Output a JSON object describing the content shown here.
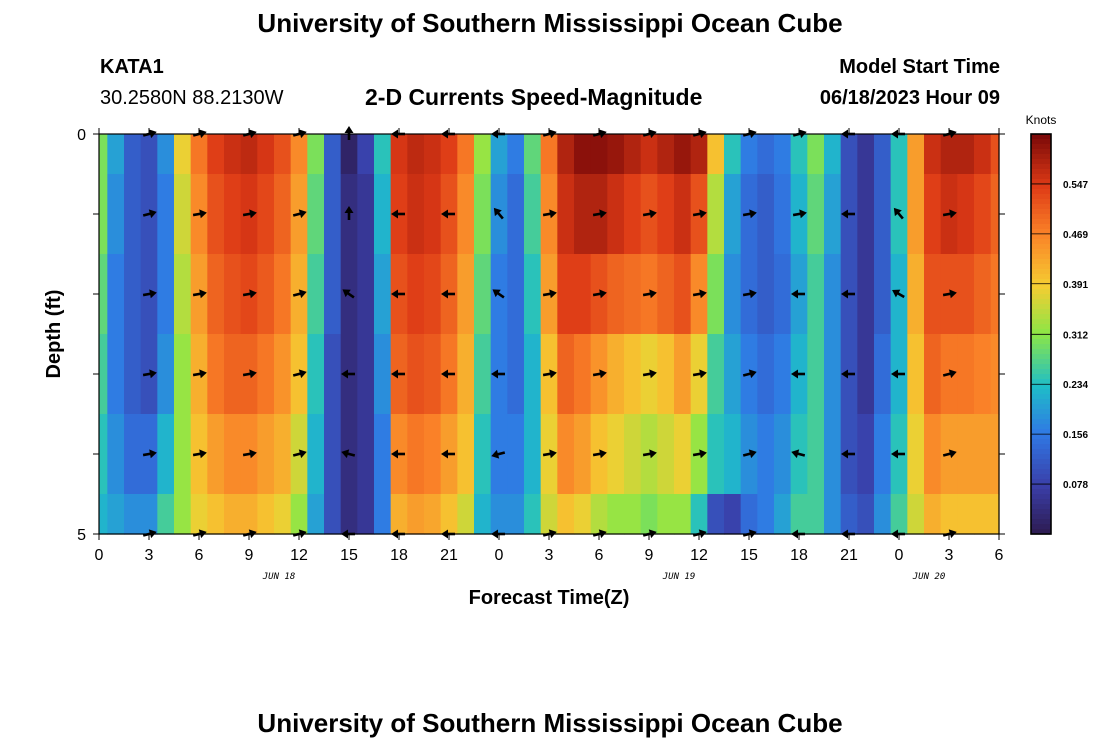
{
  "header": {
    "title": "University of Southern Mississippi Ocean Cube",
    "station_id": "KATA1",
    "station_coords": "30.2580N  88.2130W",
    "subtitle": "2-D Currents Speed-Magnitude",
    "model_start_label": "Model Start Time",
    "model_start_value": "06/18/2023 Hour 09"
  },
  "footer": {
    "title": "University of Southern Mississippi Ocean Cube"
  },
  "chart_data": {
    "type": "heatmap",
    "title": "2-D Currents Speed-Magnitude",
    "xlabel": "Forecast Time(Z)",
    "ylabel": "Depth (ft)",
    "x_tick_labels": [
      "0",
      "3",
      "6",
      "9",
      "12",
      "15",
      "18",
      "21",
      "0",
      "3",
      "6",
      "9",
      "12",
      "15",
      "18",
      "21",
      "0",
      "3",
      "6"
    ],
    "date_labels": [
      {
        "text": "JUN 18",
        "at_tick": 3.6
      },
      {
        "text": "JUN 19",
        "at_tick": 11.6
      },
      {
        "text": "JUN 20",
        "at_tick": 16.6
      }
    ],
    "y_tick_labels": [
      "0",
      "5"
    ],
    "ylim": [
      0,
      5
    ],
    "colorbar": {
      "unit": "Knots",
      "ticks": [
        "0.547",
        "0.469",
        "0.391",
        "0.312",
        "0.234",
        "0.156",
        "0.078"
      ],
      "range": [
        0,
        0.625
      ]
    },
    "time_hours": [
      0,
      1,
      2,
      3,
      4,
      5,
      6,
      7,
      8,
      9,
      10,
      11,
      12,
      13,
      14,
      15,
      16,
      17,
      18,
      19,
      20,
      21,
      22,
      23,
      24,
      25,
      26,
      27,
      28,
      29,
      30,
      31,
      32,
      33,
      34,
      35,
      36,
      37,
      38,
      39,
      40,
      41,
      42,
      43,
      44,
      45,
      46,
      47,
      48,
      49,
      50,
      51,
      52,
      53,
      54
    ],
    "depth_levels": [
      0,
      1,
      2,
      3,
      4,
      5
    ],
    "speed_knots": [
      [
        0.3,
        0.2,
        0.12,
        0.1,
        0.18,
        0.38,
        0.48,
        0.54,
        0.56,
        0.57,
        0.55,
        0.52,
        0.46,
        0.3,
        0.12,
        0.02,
        0.08,
        0.24,
        0.55,
        0.57,
        0.56,
        0.54,
        0.48,
        0.32,
        0.2,
        0.16,
        0.28,
        0.48,
        0.58,
        0.61,
        0.61,
        0.6,
        0.58,
        0.56,
        0.58,
        0.6,
        0.58,
        0.4,
        0.24,
        0.16,
        0.14,
        0.16,
        0.24,
        0.3,
        0.22,
        0.1,
        0.06,
        0.12,
        0.24,
        0.44,
        0.56,
        0.58,
        0.58,
        0.56,
        0.52
      ],
      [
        0.3,
        0.18,
        0.12,
        0.1,
        0.16,
        0.36,
        0.46,
        0.52,
        0.54,
        0.55,
        0.53,
        0.5,
        0.44,
        0.28,
        0.12,
        0.04,
        0.06,
        0.22,
        0.54,
        0.56,
        0.55,
        0.52,
        0.46,
        0.3,
        0.18,
        0.14,
        0.26,
        0.46,
        0.56,
        0.58,
        0.58,
        0.56,
        0.54,
        0.52,
        0.54,
        0.56,
        0.52,
        0.34,
        0.2,
        0.14,
        0.12,
        0.15,
        0.22,
        0.28,
        0.2,
        0.1,
        0.06,
        0.12,
        0.24,
        0.44,
        0.54,
        0.56,
        0.55,
        0.53,
        0.5
      ],
      [
        0.28,
        0.16,
        0.12,
        0.1,
        0.16,
        0.34,
        0.44,
        0.5,
        0.52,
        0.53,
        0.51,
        0.48,
        0.42,
        0.26,
        0.12,
        0.04,
        0.06,
        0.2,
        0.52,
        0.54,
        0.53,
        0.5,
        0.44,
        0.28,
        0.16,
        0.14,
        0.24,
        0.44,
        0.54,
        0.54,
        0.52,
        0.5,
        0.49,
        0.48,
        0.5,
        0.52,
        0.46,
        0.3,
        0.18,
        0.14,
        0.12,
        0.14,
        0.2,
        0.26,
        0.18,
        0.1,
        0.06,
        0.12,
        0.22,
        0.42,
        0.52,
        0.52,
        0.52,
        0.5,
        0.48
      ],
      [
        0.26,
        0.16,
        0.12,
        0.1,
        0.18,
        0.32,
        0.42,
        0.48,
        0.5,
        0.5,
        0.48,
        0.45,
        0.4,
        0.24,
        0.1,
        0.04,
        0.06,
        0.18,
        0.5,
        0.52,
        0.51,
        0.48,
        0.42,
        0.26,
        0.16,
        0.14,
        0.22,
        0.4,
        0.5,
        0.48,
        0.45,
        0.42,
        0.4,
        0.38,
        0.4,
        0.44,
        0.38,
        0.26,
        0.2,
        0.16,
        0.14,
        0.16,
        0.22,
        0.26,
        0.18,
        0.1,
        0.06,
        0.14,
        0.22,
        0.4,
        0.5,
        0.48,
        0.48,
        0.47,
        0.46
      ],
      [
        0.24,
        0.18,
        0.14,
        0.14,
        0.22,
        0.32,
        0.4,
        0.44,
        0.46,
        0.46,
        0.44,
        0.42,
        0.36,
        0.22,
        0.1,
        0.04,
        0.06,
        0.16,
        0.46,
        0.48,
        0.47,
        0.44,
        0.4,
        0.24,
        0.16,
        0.16,
        0.22,
        0.38,
        0.46,
        0.44,
        0.4,
        0.38,
        0.36,
        0.34,
        0.36,
        0.38,
        0.32,
        0.24,
        0.22,
        0.18,
        0.16,
        0.18,
        0.24,
        0.26,
        0.18,
        0.1,
        0.08,
        0.16,
        0.24,
        0.38,
        0.46,
        0.44,
        0.44,
        0.44,
        0.44
      ],
      [
        0.22,
        0.2,
        0.18,
        0.18,
        0.26,
        0.32,
        0.38,
        0.4,
        0.42,
        0.42,
        0.4,
        0.38,
        0.32,
        0.2,
        0.1,
        0.04,
        0.06,
        0.16,
        0.42,
        0.44,
        0.43,
        0.4,
        0.36,
        0.22,
        0.18,
        0.18,
        0.24,
        0.36,
        0.4,
        0.38,
        0.34,
        0.32,
        0.32,
        0.3,
        0.32,
        0.32,
        0.24,
        0.1,
        0.08,
        0.14,
        0.16,
        0.2,
        0.26,
        0.26,
        0.18,
        0.12,
        0.1,
        0.18,
        0.26,
        0.36,
        0.42,
        0.4,
        0.4,
        0.4,
        0.4
      ]
    ],
    "vectors": {
      "times": [
        3,
        6,
        9,
        12,
        15,
        18,
        21,
        24,
        27,
        30,
        33,
        36,
        39,
        42,
        45,
        48,
        51
      ],
      "depths": [
        0,
        1,
        2,
        3,
        4,
        5
      ],
      "angles_deg": [
        [
          -15,
          -15,
          -15,
          -15,
          -90,
          180,
          180,
          180,
          -15,
          -15,
          -15,
          -15,
          -15,
          -15,
          180,
          180,
          -15
        ],
        [
          -15,
          -10,
          -10,
          -15,
          -90,
          180,
          180,
          -130,
          -10,
          -10,
          -10,
          -10,
          -10,
          -10,
          180,
          -130,
          -10
        ],
        [
          -10,
          -10,
          -10,
          -15,
          -145,
          180,
          180,
          -145,
          -10,
          -10,
          -10,
          -10,
          -10,
          180,
          180,
          -150,
          -10
        ],
        [
          -10,
          -10,
          -10,
          -15,
          180,
          180,
          180,
          180,
          -10,
          -10,
          -10,
          -10,
          -15,
          180,
          180,
          180,
          -15
        ],
        [
          -10,
          -10,
          -10,
          -15,
          -165,
          180,
          180,
          165,
          -10,
          -10,
          -10,
          -10,
          -15,
          -165,
          180,
          180,
          -15
        ],
        [
          -15,
          -15,
          -15,
          -15,
          180,
          180,
          180,
          180,
          -15,
          -15,
          -15,
          -15,
          -15,
          180,
          180,
          180,
          -15
        ]
      ]
    }
  }
}
